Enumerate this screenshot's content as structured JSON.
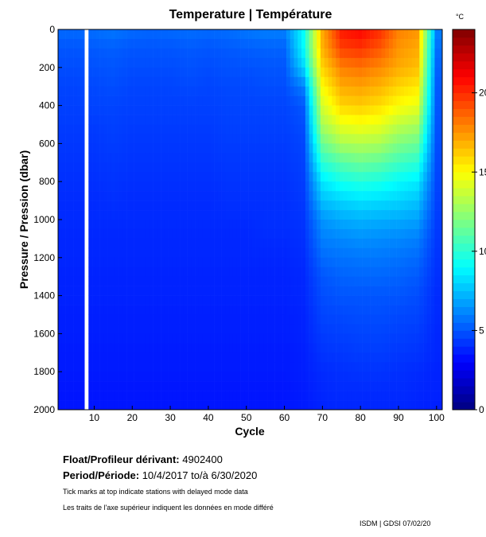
{
  "chart_data": {
    "type": "heatmap",
    "title": "Temperature | Température",
    "xlabel": "Cycle",
    "ylabel": "Pressure / Pression (dbar)",
    "xlim": [
      0.5,
      101.5
    ],
    "ylim": [
      2000,
      0
    ],
    "xticks": [
      "10",
      "20",
      "30",
      "40",
      "50",
      "60",
      "70",
      "80",
      "90",
      "100"
    ],
    "yticks": [
      "0",
      "200",
      "400",
      "600",
      "800",
      "1000",
      "1200",
      "1400",
      "1600",
      "1800",
      "2000"
    ],
    "colorbar": {
      "label": "°C",
      "range": [
        0,
        24
      ],
      "ticks": [
        "0",
        "5",
        "10",
        "15",
        "20"
      ]
    },
    "missing_cycles": [
      8
    ],
    "cycles": [
      1,
      5,
      10,
      15,
      20,
      25,
      30,
      35,
      40,
      45,
      50,
      55,
      60,
      65,
      70,
      75,
      80,
      85,
      90,
      95,
      100
    ],
    "pressures": [
      0,
      100,
      200,
      300,
      400,
      500,
      600,
      700,
      800,
      900,
      1000,
      1100,
      1200,
      1300,
      1400,
      1500,
      1600,
      1700,
      1800,
      1900,
      2000
    ],
    "temperature": [
      [
        5.5,
        5.5,
        5.6,
        5.8,
        5.5,
        5.4,
        5.5,
        5.6,
        5.5,
        5.6,
        5.8,
        6.0,
        6.0,
        9.0,
        17.0,
        20.5,
        21.0,
        20.0,
        18.0,
        17.5,
        6.0
      ],
      [
        5.0,
        5.0,
        5.1,
        5.2,
        5.0,
        5.0,
        5.0,
        5.1,
        5.0,
        5.1,
        5.2,
        5.3,
        5.3,
        9.0,
        16.8,
        19.5,
        19.8,
        19.0,
        17.5,
        17.0,
        5.6
      ],
      [
        4.8,
        4.8,
        4.9,
        5.0,
        4.8,
        4.8,
        4.8,
        4.9,
        4.8,
        4.9,
        4.9,
        5.0,
        5.0,
        8.0,
        16.0,
        18.0,
        18.3,
        17.8,
        17.0,
        16.5,
        5.3
      ],
      [
        4.6,
        4.6,
        4.7,
        4.8,
        4.6,
        4.6,
        4.6,
        4.7,
        4.6,
        4.7,
        4.7,
        4.8,
        4.8,
        6.0,
        15.0,
        17.0,
        17.2,
        16.8,
        16.0,
        15.5,
        5.1
      ],
      [
        4.5,
        4.5,
        4.6,
        4.6,
        4.5,
        4.5,
        4.5,
        4.5,
        4.5,
        4.6,
        4.6,
        4.6,
        4.6,
        5.0,
        14.0,
        16.0,
        16.2,
        15.8,
        15.0,
        14.5,
        5.0
      ],
      [
        4.4,
        4.4,
        4.4,
        4.5,
        4.4,
        4.4,
        4.4,
        4.4,
        4.4,
        4.5,
        4.5,
        4.5,
        4.5,
        4.8,
        13.0,
        14.5,
        14.8,
        14.5,
        13.5,
        13.0,
        4.9
      ],
      [
        4.3,
        4.3,
        4.3,
        4.4,
        4.3,
        4.3,
        4.3,
        4.3,
        4.3,
        4.4,
        4.4,
        4.4,
        4.4,
        4.6,
        11.5,
        13.0,
        13.2,
        13.0,
        12.0,
        11.5,
        4.8
      ],
      [
        4.2,
        4.2,
        4.2,
        4.3,
        4.2,
        4.2,
        4.2,
        4.2,
        4.2,
        4.3,
        4.3,
        4.3,
        4.3,
        4.5,
        10.0,
        11.0,
        11.5,
        11.2,
        10.5,
        10.0,
        4.7
      ],
      [
        4.1,
        4.1,
        4.1,
        4.2,
        4.1,
        4.1,
        4.1,
        4.1,
        4.1,
        4.2,
        4.2,
        4.2,
        4.2,
        4.4,
        8.5,
        9.5,
        9.8,
        9.6,
        9.0,
        8.6,
        4.6
      ],
      [
        4.0,
        4.0,
        4.0,
        4.1,
        4.0,
        4.0,
        4.0,
        4.0,
        4.0,
        4.1,
        4.1,
        4.1,
        4.1,
        4.3,
        7.5,
        8.0,
        8.3,
        8.2,
        8.0,
        7.6,
        4.5
      ],
      [
        4.0,
        4.0,
        4.0,
        4.0,
        4.0,
        4.0,
        4.0,
        4.0,
        4.0,
        4.0,
        4.0,
        4.1,
        4.1,
        4.2,
        6.5,
        7.0,
        7.2,
        7.1,
        7.0,
        6.8,
        4.4
      ],
      [
        3.9,
        3.9,
        3.9,
        3.9,
        3.9,
        3.9,
        3.9,
        3.9,
        3.9,
        3.9,
        3.9,
        4.0,
        4.0,
        4.1,
        6.0,
        6.2,
        6.4,
        6.3,
        6.2,
        6.0,
        4.3
      ],
      [
        3.9,
        3.9,
        3.9,
        3.9,
        3.9,
        3.9,
        3.9,
        3.9,
        3.9,
        3.9,
        3.9,
        3.9,
        3.9,
        4.0,
        5.5,
        5.7,
        5.8,
        5.8,
        5.7,
        5.5,
        4.2
      ],
      [
        3.8,
        3.8,
        3.8,
        3.8,
        3.8,
        3.8,
        3.8,
        3.8,
        3.8,
        3.8,
        3.8,
        3.8,
        3.8,
        3.9,
        5.0,
        5.3,
        5.4,
        5.4,
        5.3,
        5.1,
        4.1
      ],
      [
        3.8,
        3.8,
        3.8,
        3.8,
        3.8,
        3.8,
        3.8,
        3.8,
        3.8,
        3.8,
        3.8,
        3.8,
        3.8,
        3.9,
        4.8,
        5.0,
        5.0,
        5.0,
        5.0,
        4.8,
        4.0
      ],
      [
        3.7,
        3.7,
        3.7,
        3.7,
        3.7,
        3.7,
        3.7,
        3.7,
        3.7,
        3.7,
        3.7,
        3.7,
        3.7,
        3.8,
        4.6,
        4.7,
        4.8,
        4.8,
        4.7,
        4.6,
        4.0
      ],
      [
        3.7,
        3.7,
        3.7,
        3.7,
        3.7,
        3.7,
        3.7,
        3.7,
        3.7,
        3.7,
        3.7,
        3.7,
        3.7,
        3.8,
        4.4,
        4.5,
        4.6,
        4.6,
        4.5,
        4.4,
        3.9
      ],
      [
        3.6,
        3.6,
        3.6,
        3.6,
        3.6,
        3.6,
        3.6,
        3.6,
        3.6,
        3.6,
        3.6,
        3.6,
        3.6,
        3.7,
        4.2,
        4.3,
        4.4,
        4.4,
        4.3,
        4.2,
        3.9
      ],
      [
        3.6,
        3.6,
        3.6,
        3.6,
        3.6,
        3.6,
        3.6,
        3.6,
        3.6,
        3.6,
        3.6,
        3.6,
        3.6,
        3.7,
        4.0,
        4.1,
        4.2,
        4.2,
        4.1,
        4.0,
        3.8
      ],
      [
        3.5,
        3.5,
        3.5,
        3.5,
        3.5,
        3.5,
        3.5,
        3.5,
        3.5,
        3.5,
        3.5,
        3.5,
        3.5,
        3.6,
        3.9,
        4.0,
        4.0,
        4.0,
        4.0,
        3.9,
        3.8
      ],
      [
        3.5,
        3.5,
        3.5,
        3.5,
        3.5,
        3.5,
        3.5,
        3.5,
        3.5,
        3.5,
        3.5,
        3.5,
        3.5,
        3.6,
        3.8,
        3.9,
        3.9,
        3.9,
        3.9,
        3.8,
        3.7
      ]
    ]
  },
  "info": {
    "float_label": "Float/Profileur dérivant:",
    "float_id": "4902400",
    "period_label": "Period/Période:",
    "period_start": "10/4/2017",
    "period_to": "to/à",
    "period_end": "6/30/2020",
    "note_en": "Tick marks at top indicate stations with delayed mode data",
    "note_fr": "Les traits de l'axe supérieur indiquent les données en mode différé",
    "credit": "ISDM | GDSI  07/02/20"
  }
}
